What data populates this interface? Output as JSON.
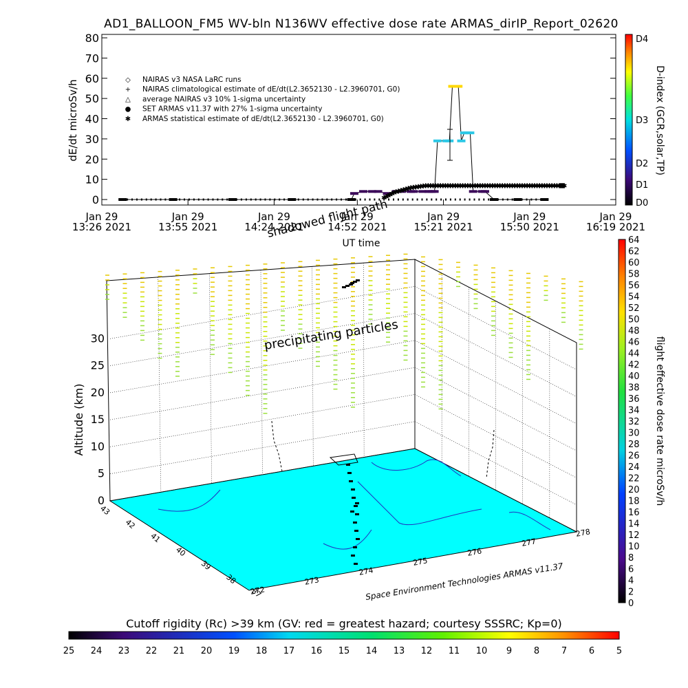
{
  "title": "AD1_BALLOON_FM5 WV-bln N136WV effective dose rate ARMAS_dirIP_Report_02620",
  "chart_data": [
    {
      "type": "line",
      "ylabel": "dE/dt microSv/h",
      "xlabel": "UT time",
      "ylim": [
        0,
        80
      ],
      "yticks": [
        0,
        10,
        20,
        30,
        40,
        50,
        60,
        70,
        80
      ],
      "xlim_minutes": [
        806,
        979
      ],
      "xticks": [
        {
          "m": 806,
          "line1": "Jan 29",
          "line2": "13:26 2021"
        },
        {
          "m": 835,
          "line1": "Jan 29",
          "line2": "13:55 2021"
        },
        {
          "m": 864,
          "line1": "Jan 29",
          "line2": "14:24 2021"
        },
        {
          "m": 892,
          "line1": "Jan 29",
          "line2": "14:52 2021"
        },
        {
          "m": 921,
          "line1": "Jan 29",
          "line2": "15:21 2021"
        },
        {
          "m": 950,
          "line1": "Jan 29",
          "line2": "15:50 2021"
        },
        {
          "m": 979,
          "line1": "Jan 29",
          "line2": "16:19 2021"
        }
      ],
      "legend": [
        {
          "symbol": "◇",
          "label": "NAIRAS v3 NASA LaRC runs"
        },
        {
          "symbol": "+",
          "label": "NAIRAS climatological estimate of dE/dt(L2.3652130 - L2.3960701, G0)"
        },
        {
          "symbol": "△",
          "label": "average NAIRAS v3 10% 1-sigma uncertainty"
        },
        {
          "symbol": "●",
          "label": "SET ARMAS v11.37 with 27% 1-sigma uncertainty"
        },
        {
          "symbol": "✱",
          "label": "ARMAS statistical estimate of dE/dt(L2.3652130 - L2.3960701, G0)"
        }
      ],
      "series": [
        {
          "name": "SET ARMAS v11.37 with 27% 1-sigma uncertainty",
          "x": [
            813,
            830,
            850,
            870,
            890,
            891,
            894,
            897,
            899,
            902,
            905,
            907,
            910,
            911,
            914,
            916,
            917,
            918,
            919,
            922,
            923,
            924,
            925,
            926,
            927,
            928,
            929,
            930,
            931,
            934,
            935,
            938,
            946,
            955
          ],
          "y": [
            0,
            0,
            0,
            0,
            0,
            3,
            4,
            4,
            4,
            3,
            4,
            4,
            4,
            4,
            4,
            4,
            4,
            4,
            29,
            29,
            29,
            56,
            56,
            56,
            29,
            33,
            33,
            33,
            4,
            4,
            4,
            0,
            0,
            0
          ],
          "colors": [
            "#000000",
            "#000000",
            "#000000",
            "#000000",
            "#000000",
            "#3c0a5a",
            "#3c0a5a",
            "#3c0a5a",
            "#3c0a5a",
            "#3c0a5a",
            "#3c0a5a",
            "#3c0a5a",
            "#3c0a5a",
            "#3c0a5a",
            "#3c0a5a",
            "#3c0a5a",
            "#3c0a5a",
            "#3c0a5a",
            "#2cc8e6",
            "#2cc8e6",
            "#2cc8e6",
            "#ffd800",
            "#ffd800",
            "#ffd800",
            "#2cc8e6",
            "#2cc8e6",
            "#2cc8e6",
            "#2cc8e6",
            "#3c0a5a",
            "#3c0a5a",
            "#3c0a5a",
            "#000000",
            "#000000",
            "#000000"
          ]
        },
        {
          "name": "ARMAS statistical estimate of dE/dt(L2.3652130 - L2.3960701, G0)",
          "x": [
            901,
            905,
            910,
            915,
            920,
            925,
            930,
            935,
            940,
            945,
            950,
            955,
            960,
            962
          ],
          "y": [
            1,
            4,
            6,
            7,
            7,
            7,
            7,
            7,
            7,
            7,
            7,
            7,
            7,
            7
          ]
        }
      ],
      "annotations": [
        "shadowed flight path"
      ],
      "right_axis": {
        "label": "D-index (GCR,solar,TP)",
        "ticks": [
          "D0",
          "D1",
          "D2",
          "D3",
          "D4"
        ],
        "colors": [
          "#000000",
          "#3c0a78",
          "#0050ff",
          "#00e0e0",
          "#40ff40",
          "#ffff00",
          "#ff8000",
          "#ff0000"
        ]
      }
    },
    {
      "type": "scatter",
      "zlabel": "Altitude (km)",
      "zticks": [
        0,
        5,
        10,
        15,
        20,
        25,
        30
      ],
      "lat_ticks": [
        "43",
        "42",
        "41",
        "40",
        "39",
        "38",
        "37"
      ],
      "lon_ticks": [
        "272",
        "273",
        "274",
        "275",
        "276",
        "277",
        "278"
      ],
      "credit": "Space Environment Technologies ARMAS v11.37",
      "annotations": [
        "precipitating particles"
      ],
      "colorbar": {
        "label": "flight effective dose rate microSv/h",
        "ticks": [
          0,
          2,
          4,
          6,
          8,
          10,
          12,
          14,
          16,
          18,
          20,
          22,
          24,
          26,
          28,
          30,
          32,
          34,
          36,
          38,
          40,
          42,
          44,
          46,
          48,
          50,
          52,
          54,
          56,
          58,
          60,
          62,
          64
        ]
      }
    }
  ],
  "bottom_colorbar": {
    "label": "Cutoff rigidity (Rc) >39 km (GV: red = greatest hazard; courtesy SSSRC; Kp=0)",
    "ticks": [
      "25",
      "24",
      "23",
      "22",
      "21",
      "20",
      "19",
      "18",
      "17",
      "16",
      "15",
      "14",
      "13",
      "12",
      "11",
      "10",
      "9",
      "8",
      "7",
      "6",
      "5"
    ]
  }
}
